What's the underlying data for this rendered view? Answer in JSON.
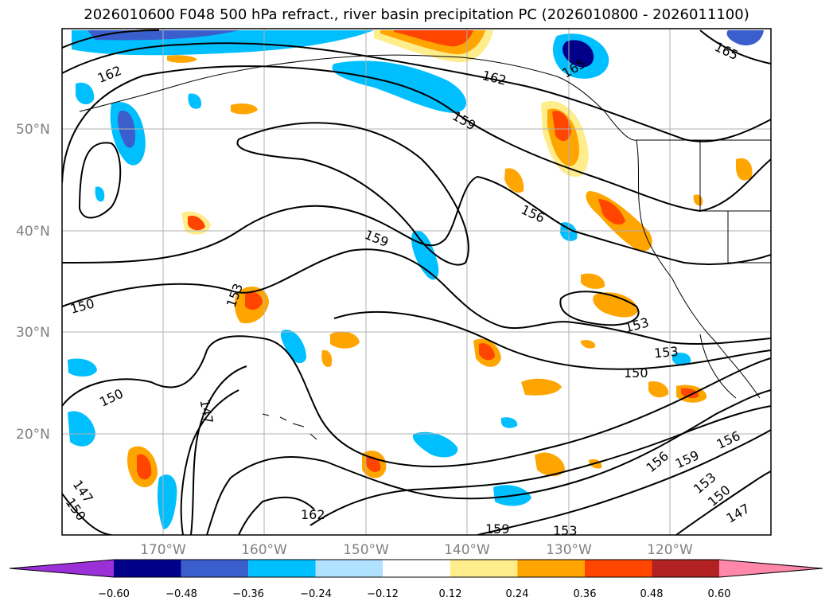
{
  "title": "2026010600 F048 500 hPa refract., river basin precipitation PC (2026010800 - 2026011100)",
  "lat_labels": [
    "50°N",
    "40°N",
    "30°N",
    "20°N"
  ],
  "lon_labels": [
    "170°W",
    "160°W",
    "150°W",
    "140°W",
    "130°W",
    "120°W"
  ],
  "contour_labels": [
    {
      "text": "162"
    },
    {
      "text": "162"
    },
    {
      "text": "165"
    },
    {
      "text": "159"
    },
    {
      "text": "156"
    },
    {
      "text": "159"
    },
    {
      "text": "153"
    },
    {
      "text": "150"
    },
    {
      "text": "150"
    },
    {
      "text": "147"
    },
    {
      "text": "147"
    },
    {
      "text": "150"
    },
    {
      "text": "162"
    },
    {
      "text": "159"
    },
    {
      "text": "153"
    },
    {
      "text": "153"
    },
    {
      "text": "153"
    },
    {
      "text": "150"
    },
    {
      "text": "156"
    },
    {
      "text": "159"
    },
    {
      "text": "156"
    },
    {
      "text": "153"
    },
    {
      "text": "150"
    },
    {
      "text": "147"
    },
    {
      "text": "165"
    }
  ],
  "colorbar": {
    "ticks": [
      "−0.60",
      "−0.48",
      "−0.36",
      "−0.24",
      "−0.12",
      "0.12",
      "0.24",
      "0.36",
      "0.48",
      "0.60"
    ],
    "colors": [
      "#9b30d9",
      "#00008b",
      "#3a5fcd",
      "#00bfff",
      "#b0e2ff",
      "#ffffff",
      "#ffec8b",
      "#ffa500",
      "#ff4500",
      "#b22222",
      "#ff88aa"
    ]
  }
}
